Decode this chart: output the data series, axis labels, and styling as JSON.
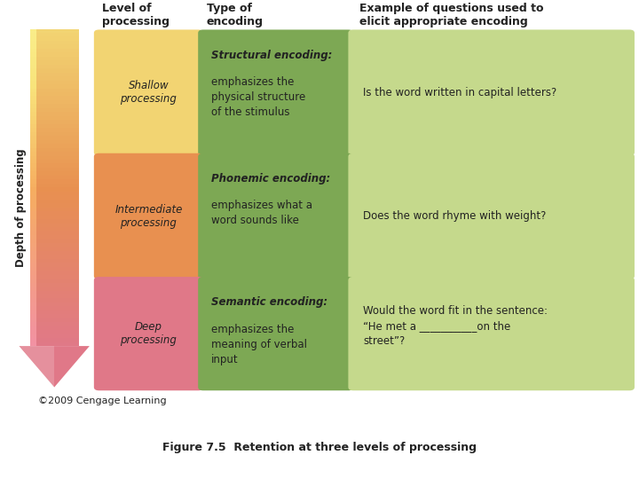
{
  "title": "Figure 7.5  Retention at three levels of processing",
  "background_color": "#b4bccf",
  "title_bg": "#ffffff",
  "copyright": "©2009 Cengage Learning",
  "header": {
    "col1": "Level of\nprocessing",
    "col2": "Type of\nencoding",
    "col3": "Example of questions used to\nelicit appropriate encoding"
  },
  "rows": [
    {
      "level": "Shallow\nprocessing",
      "level_bg": "#f2d472",
      "encoding_title": "Structural encoding:",
      "encoding_body": "emphasizes the\nphysical structure\nof the stimulus",
      "encoding_bg": "#7da854",
      "example": "Is the word written in capital letters?",
      "example_bg": "#c5d98c"
    },
    {
      "level": "Intermediate\nprocessing",
      "level_bg": "#e89050",
      "encoding_title": "Phonemic encoding:",
      "encoding_body": "emphasizes what a\nword sounds like",
      "encoding_bg": "#7da854",
      "example": "Does the word rhyme with weight?",
      "example_bg": "#c5d98c"
    },
    {
      "level": "Deep\nprocessing",
      "level_bg": "#e07888",
      "encoding_title": "Semantic encoding:",
      "encoding_body": "emphasizes the\nmeaning of verbal\ninput",
      "encoding_bg": "#7da854",
      "example": "Would the word fit in the sentence:\n“He met a ___________on the\nstreet”?",
      "example_bg": "#c5d98c"
    }
  ],
  "arrow_top_color": "#f2d472",
  "arrow_mid_color": "#e89050",
  "arrow_bot_color": "#e07888",
  "depth_label": "Depth of processing",
  "text_color": "#222222",
  "header_fontsize": 9,
  "cell_fontsize": 8.5,
  "title_fontsize": 9
}
